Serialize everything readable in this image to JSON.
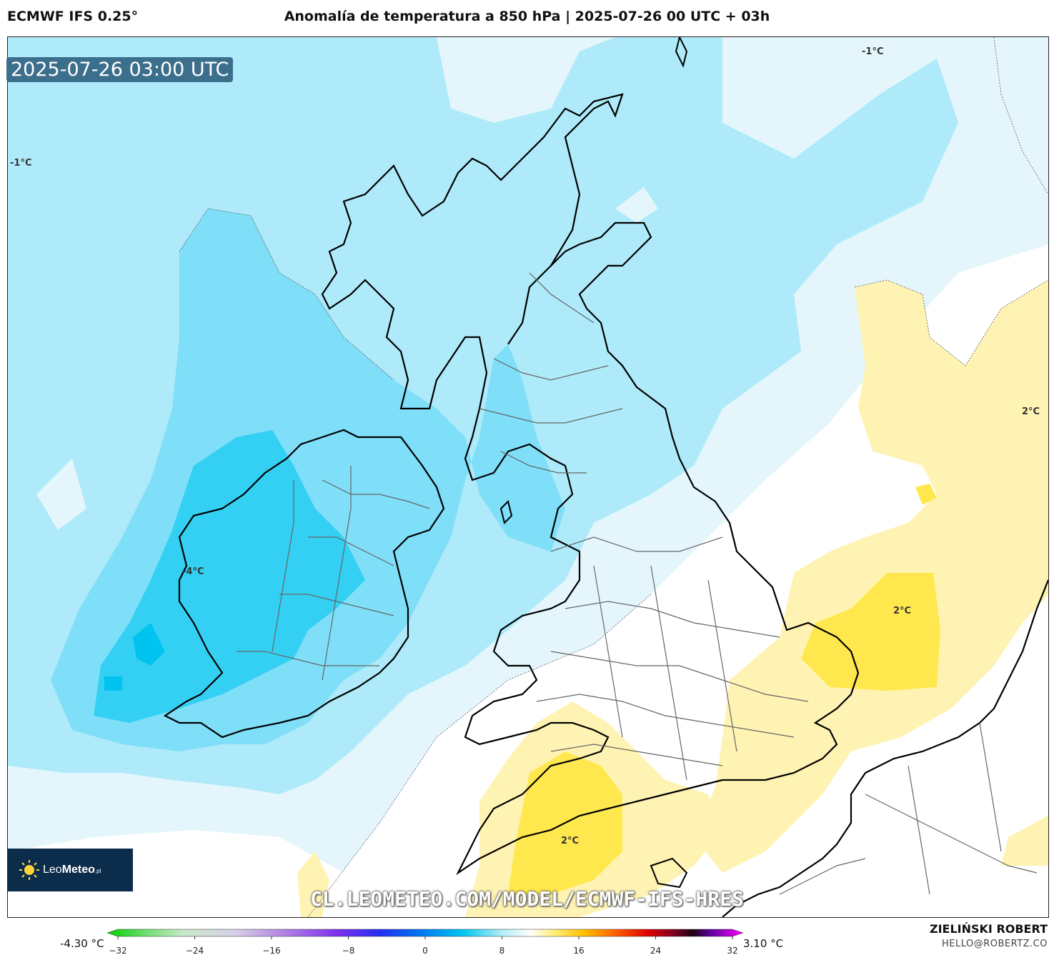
{
  "header": {
    "model": "ECMWF IFS 0.25°",
    "title": "Anomalía de temperatura a 850 hPa | 2025-07-26 00 UTC + 03h"
  },
  "map": {
    "valid_time": "2025-07-26 03:00 UTC",
    "contour_labels": [
      "-1°C",
      "-1°C",
      "-4°C",
      "2°C",
      "2°C",
      "2°C"
    ],
    "colors": {
      "cold_1": "#e4f6fc",
      "cold_2": "#aeeaf9",
      "cold_3": "#7fdef8",
      "cold_4": "#33d0f3",
      "warm_1": "#fff3b3",
      "warm_2": "#ffe84d",
      "land": "#ffffff",
      "coast": "#000000"
    }
  },
  "logo": {
    "brand_a": "Leo",
    "brand_b": "Meteo",
    "suffix": ".pl"
  },
  "watermark": "CL.LEOMETEO.COM/MODEL/ECMWF-IFS-HRES",
  "colorbar": {
    "min_label": "-4.30 °C",
    "max_label": "3.10 °C",
    "ticks": [
      "−32",
      "−24",
      "−16",
      "−8",
      "0",
      "8",
      "16",
      "24",
      "32"
    ],
    "tick_values": [
      -32,
      -24,
      -16,
      -8,
      0,
      8,
      16,
      24,
      32
    ],
    "range": [
      -32,
      32
    ]
  },
  "credits": {
    "author": "ZIELIŃSKI ROBERT",
    "email": "HELLO@ROBERTZ.CO"
  }
}
